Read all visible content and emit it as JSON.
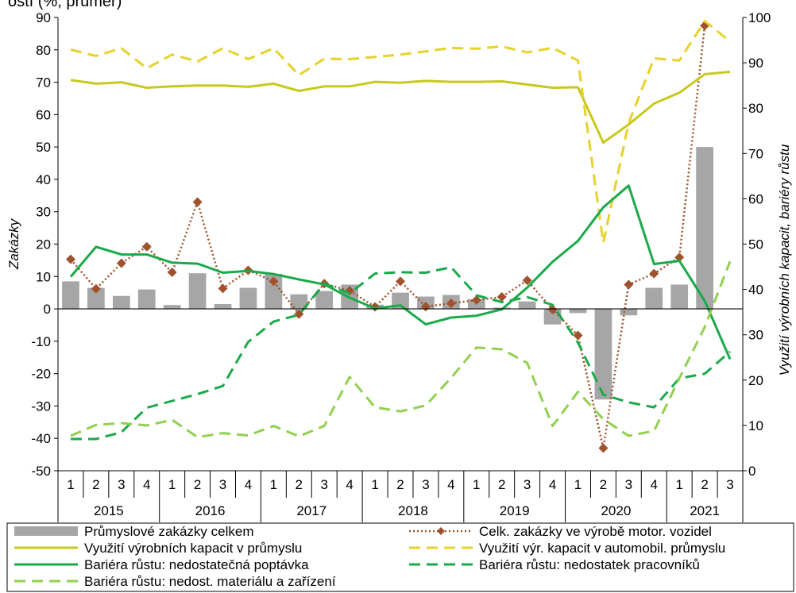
{
  "top_text": "ostí (%, průměr)",
  "chart_data": {
    "type": "bar+line",
    "left_axis": {
      "label": "Zakázky",
      "min": -50,
      "max": 90,
      "step": 10
    },
    "right_axis": {
      "label": "Využití výrobních kapacit, bariéry růstu",
      "min": 0,
      "max": 100,
      "step": 10
    },
    "quarters": [
      "1",
      "2",
      "3",
      "4",
      "1",
      "2",
      "3",
      "4",
      "1",
      "2",
      "3",
      "4",
      "1",
      "2",
      "3",
      "4",
      "1",
      "2",
      "3",
      "4",
      "1",
      "2",
      "3",
      "4",
      "1",
      "2",
      "3"
    ],
    "years": [
      "2015",
      "2016",
      "2017",
      "2018",
      "2019",
      "2020",
      "2021"
    ],
    "year_spans": [
      4,
      4,
      4,
      4,
      4,
      4,
      3
    ],
    "grid": false,
    "legend_position": "bottom",
    "series": [
      {
        "name": "Průmyslové zakázky celkem",
        "type": "bar",
        "axis": "left",
        "color": "#a6a6a6",
        "values": [
          8.5,
          6.5,
          4,
          6,
          1.2,
          11,
          1.5,
          6.5,
          10.8,
          4.5,
          5.5,
          7.5,
          1.3,
          5,
          3.8,
          4.3,
          3,
          0.4,
          2.3,
          -4.8,
          -1.3,
          -28,
          -2,
          6.5,
          7.5,
          50,
          0
        ]
      },
      {
        "name": "Celk. zakázky ve výrobě motor. vozidel",
        "type": "line",
        "axis": "left",
        "color": "#a0522d",
        "dash": "dotted",
        "marker": "diamond",
        "values": [
          15.3,
          6.2,
          14.1,
          19.2,
          11.3,
          33,
          6.3,
          11.9,
          8.5,
          -1.6,
          7.8,
          5.6,
          0.6,
          8.5,
          0.7,
          1.7,
          2.7,
          3.7,
          8.8,
          -0.2,
          -8.2,
          -43,
          7.5,
          10.9,
          15.9,
          87.5,
          0
        ],
        "points": 26
      },
      {
        "name": "Využití výrobních kapacit v průmyslu",
        "type": "line",
        "axis": "right",
        "color": "#c8c81e",
        "dash": "solid",
        "values": [
          86.2,
          85.4,
          85.7,
          84.5,
          84.8,
          85,
          85,
          84.7,
          85.4,
          83.8,
          84.8,
          84.8,
          85.8,
          85.6,
          86,
          85.8,
          85.8,
          85.9,
          85.2,
          84.5,
          84.6,
          72.4,
          76.4,
          81,
          83.4,
          87.5,
          88
        ]
      },
      {
        "name": "Využití výr. kapacit v automobil. průmyslu",
        "type": "line",
        "axis": "right",
        "color": "#e5d22a",
        "dash": "dashed",
        "values": [
          92.9,
          91.5,
          93.2,
          88.8,
          91.8,
          90.3,
          93.2,
          90.8,
          93.2,
          87.3,
          90.9,
          90.8,
          91.3,
          91.8,
          92.5,
          93.3,
          93.1,
          93.6,
          92.3,
          93.3,
          90.5,
          50.3,
          76.7,
          91,
          90.5,
          99.2,
          94.7
        ]
      },
      {
        "name": "Bariéra růstu: nedostatečná poptávka",
        "type": "line",
        "axis": "right",
        "color": "#1aaa4a",
        "dash": "solid",
        "values": [
          42.8,
          49.4,
          47.7,
          47.7,
          45.9,
          45.7,
          43.7,
          44.1,
          43.4,
          42.2,
          41.1,
          38.2,
          35.8,
          36.5,
          32.3,
          33.8,
          34.2,
          35.6,
          40.4,
          46.1,
          50.7,
          58.1,
          62.9,
          45.6,
          46.3,
          37.5,
          24.6
        ]
      },
      {
        "name": "Bariéra růstu: nedostatek pracovníků",
        "type": "line",
        "axis": "right",
        "color": "#1aaa4a",
        "dash": "dashed",
        "values": [
          7,
          7,
          8.5,
          13.9,
          15.4,
          16.9,
          18.7,
          28.4,
          32.9,
          34.4,
          41.3,
          39.1,
          43.5,
          43.8,
          43.7,
          44.9,
          38.7,
          37.2,
          38.3,
          36.6,
          28.3,
          16.8,
          15.1,
          14,
          20.4,
          21.4,
          26.3
        ]
      },
      {
        "name": "Bariéra růstu: nedost. materiálu a zařízení",
        "type": "line",
        "axis": "right",
        "color": "#92d050",
        "dash": "dashed",
        "values": [
          7.7,
          10.1,
          10.5,
          10,
          11.2,
          7.4,
          8.3,
          7.8,
          9.9,
          7.6,
          9.9,
          20.7,
          14,
          13.1,
          14.4,
          20.5,
          27.2,
          26.8,
          23.8,
          9.9,
          17.4,
          11.4,
          7.7,
          8.8,
          20.4,
          31.7,
          46.2
        ]
      }
    ]
  }
}
